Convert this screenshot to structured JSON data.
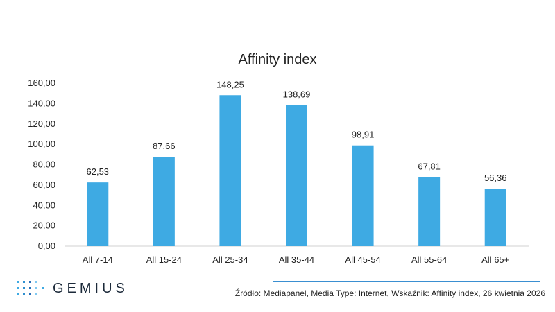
{
  "chart_data": {
    "type": "bar",
    "title": "Affinity index",
    "xlabel": "",
    "ylabel": "",
    "categories": [
      "All 7-14",
      "All 15-24",
      "All 25-34",
      "All 35-44",
      "All 45-54",
      "All 55-64",
      "All 65+"
    ],
    "values": [
      62.53,
      87.66,
      148.25,
      138.69,
      98.91,
      67.81,
      56.36
    ],
    "value_labels": [
      "62,53",
      "87,66",
      "148,25",
      "138,69",
      "98,91",
      "67,81",
      "56,36"
    ],
    "ylim": [
      0,
      160
    ],
    "yticks": [
      0,
      20,
      40,
      60,
      80,
      100,
      120,
      140,
      160
    ],
    "ytick_labels": [
      "0,00",
      "20,00",
      "40,00",
      "60,00",
      "80,00",
      "100,00",
      "120,00",
      "140,00",
      "160,00"
    ],
    "grid": false,
    "legend": "none",
    "bar_color": "#3eaae3"
  },
  "footer": {
    "logo_text": "GEMIUS",
    "source": "Źródło: Mediapanel, Media Type: Internet, Wskaźnik: Affinity index, 26 kwietnia 2026",
    "accent_color": "#3a8fd1"
  }
}
